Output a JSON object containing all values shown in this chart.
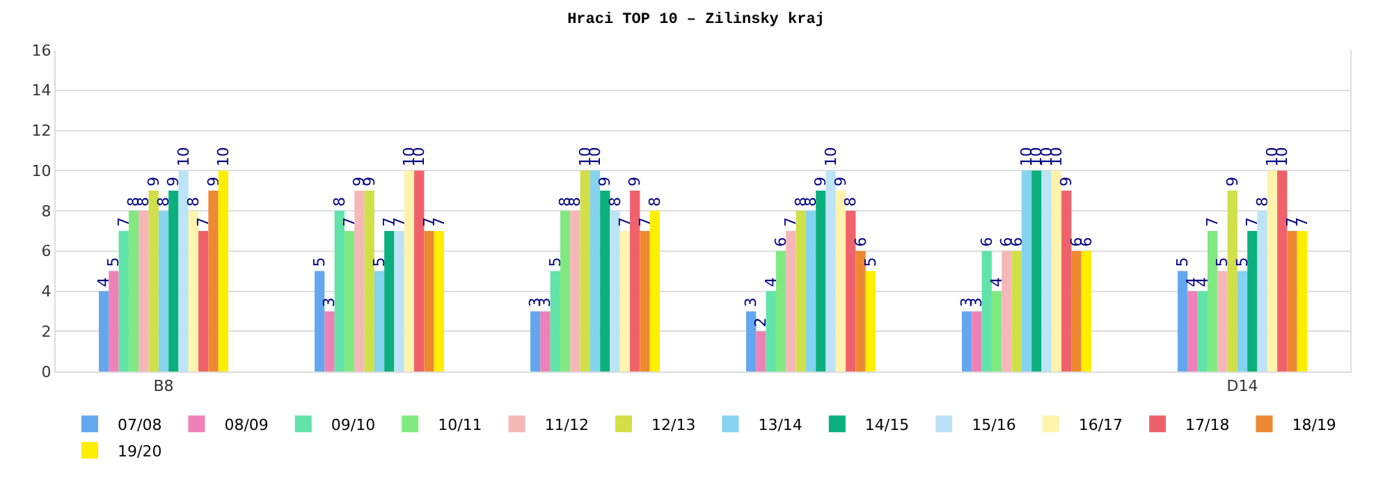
{
  "chart_data": {
    "type": "bar",
    "title": "Hraci TOP 10 – Zilinsky kraj",
    "categories": [
      "B8",
      null,
      null,
      null,
      null,
      "D14"
    ],
    "series": [
      {
        "name": "07/08",
        "color": "#63a8ef",
        "values": [
          4,
          5,
          3,
          3,
          3,
          5
        ]
      },
      {
        "name": "08/09",
        "color": "#ee82b8",
        "values": [
          5,
          3,
          3,
          2,
          3,
          4
        ]
      },
      {
        "name": "09/10",
        "color": "#61e3a9",
        "values": [
          7,
          8,
          5,
          4,
          6,
          4
        ]
      },
      {
        "name": "10/11",
        "color": "#80ea80",
        "values": [
          8,
          7,
          8,
          6,
          4,
          7
        ]
      },
      {
        "name": "11/12",
        "color": "#f5b7b7",
        "values": [
          8,
          9,
          8,
          7,
          6,
          5
        ]
      },
      {
        "name": "12/13",
        "color": "#d1df48",
        "values": [
          9,
          9,
          10,
          8,
          6,
          9
        ]
      },
      {
        "name": "13/14",
        "color": "#85d3ee",
        "values": [
          8,
          5,
          10,
          8,
          10,
          5
        ]
      },
      {
        "name": "14/15",
        "color": "#0bb07d",
        "values": [
          9,
          7,
          9,
          9,
          10,
          7
        ]
      },
      {
        "name": "15/16",
        "color": "#bde3f7",
        "values": [
          10,
          7,
          8,
          10,
          10,
          8
        ]
      },
      {
        "name": "16/17",
        "color": "#fff3ad",
        "values": [
          8,
          10,
          7,
          9,
          10,
          10
        ]
      },
      {
        "name": "17/18",
        "color": "#f0626b",
        "values": [
          7,
          10,
          9,
          8,
          9,
          10
        ]
      },
      {
        "name": "18/19",
        "color": "#ef8833",
        "values": [
          9,
          7,
          7,
          6,
          6,
          7
        ]
      },
      {
        "name": "19/20",
        "color": "#ffee00",
        "values": [
          10,
          7,
          8,
          5,
          6,
          7
        ]
      }
    ],
    "ylim": [
      0,
      16
    ],
    "yticks": [
      0,
      2,
      4,
      6,
      8,
      10,
      12,
      14,
      16
    ],
    "grid": "y",
    "legend": "bottom",
    "data_labels": true
  }
}
